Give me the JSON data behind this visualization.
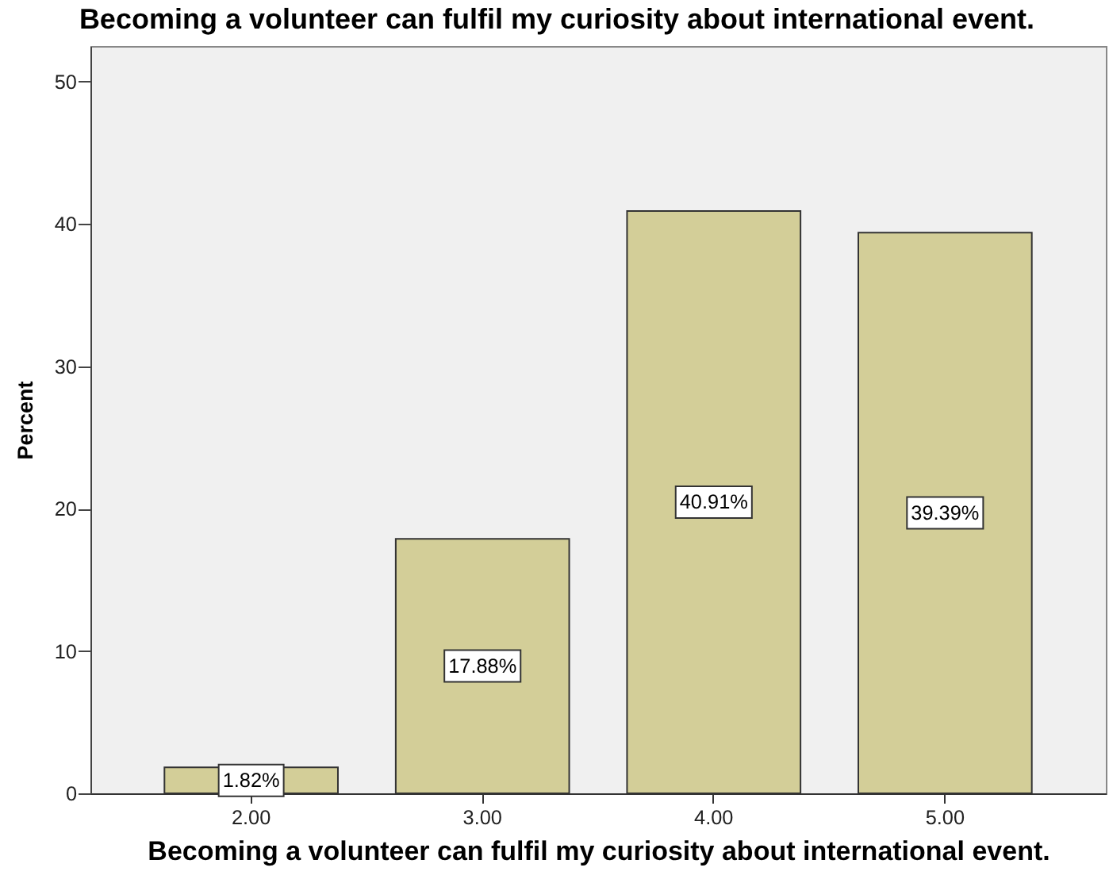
{
  "chart_data": {
    "type": "bar",
    "title": "Becoming a volunteer can fulfil my curiosity about international event.",
    "xlabel": "Becoming a volunteer can fulfil my curiosity about international event.",
    "ylabel": "Percent",
    "categories": [
      "2.00",
      "3.00",
      "4.00",
      "5.00"
    ],
    "values": [
      1.82,
      17.88,
      40.91,
      39.39
    ],
    "value_labels": [
      "1.82%",
      "17.88%",
      "40.91%",
      "39.39%"
    ],
    "color": "#d3ce98",
    "ylim": [
      0,
      52.5
    ],
    "yticks": [
      0,
      10,
      20,
      30,
      40,
      50
    ]
  }
}
